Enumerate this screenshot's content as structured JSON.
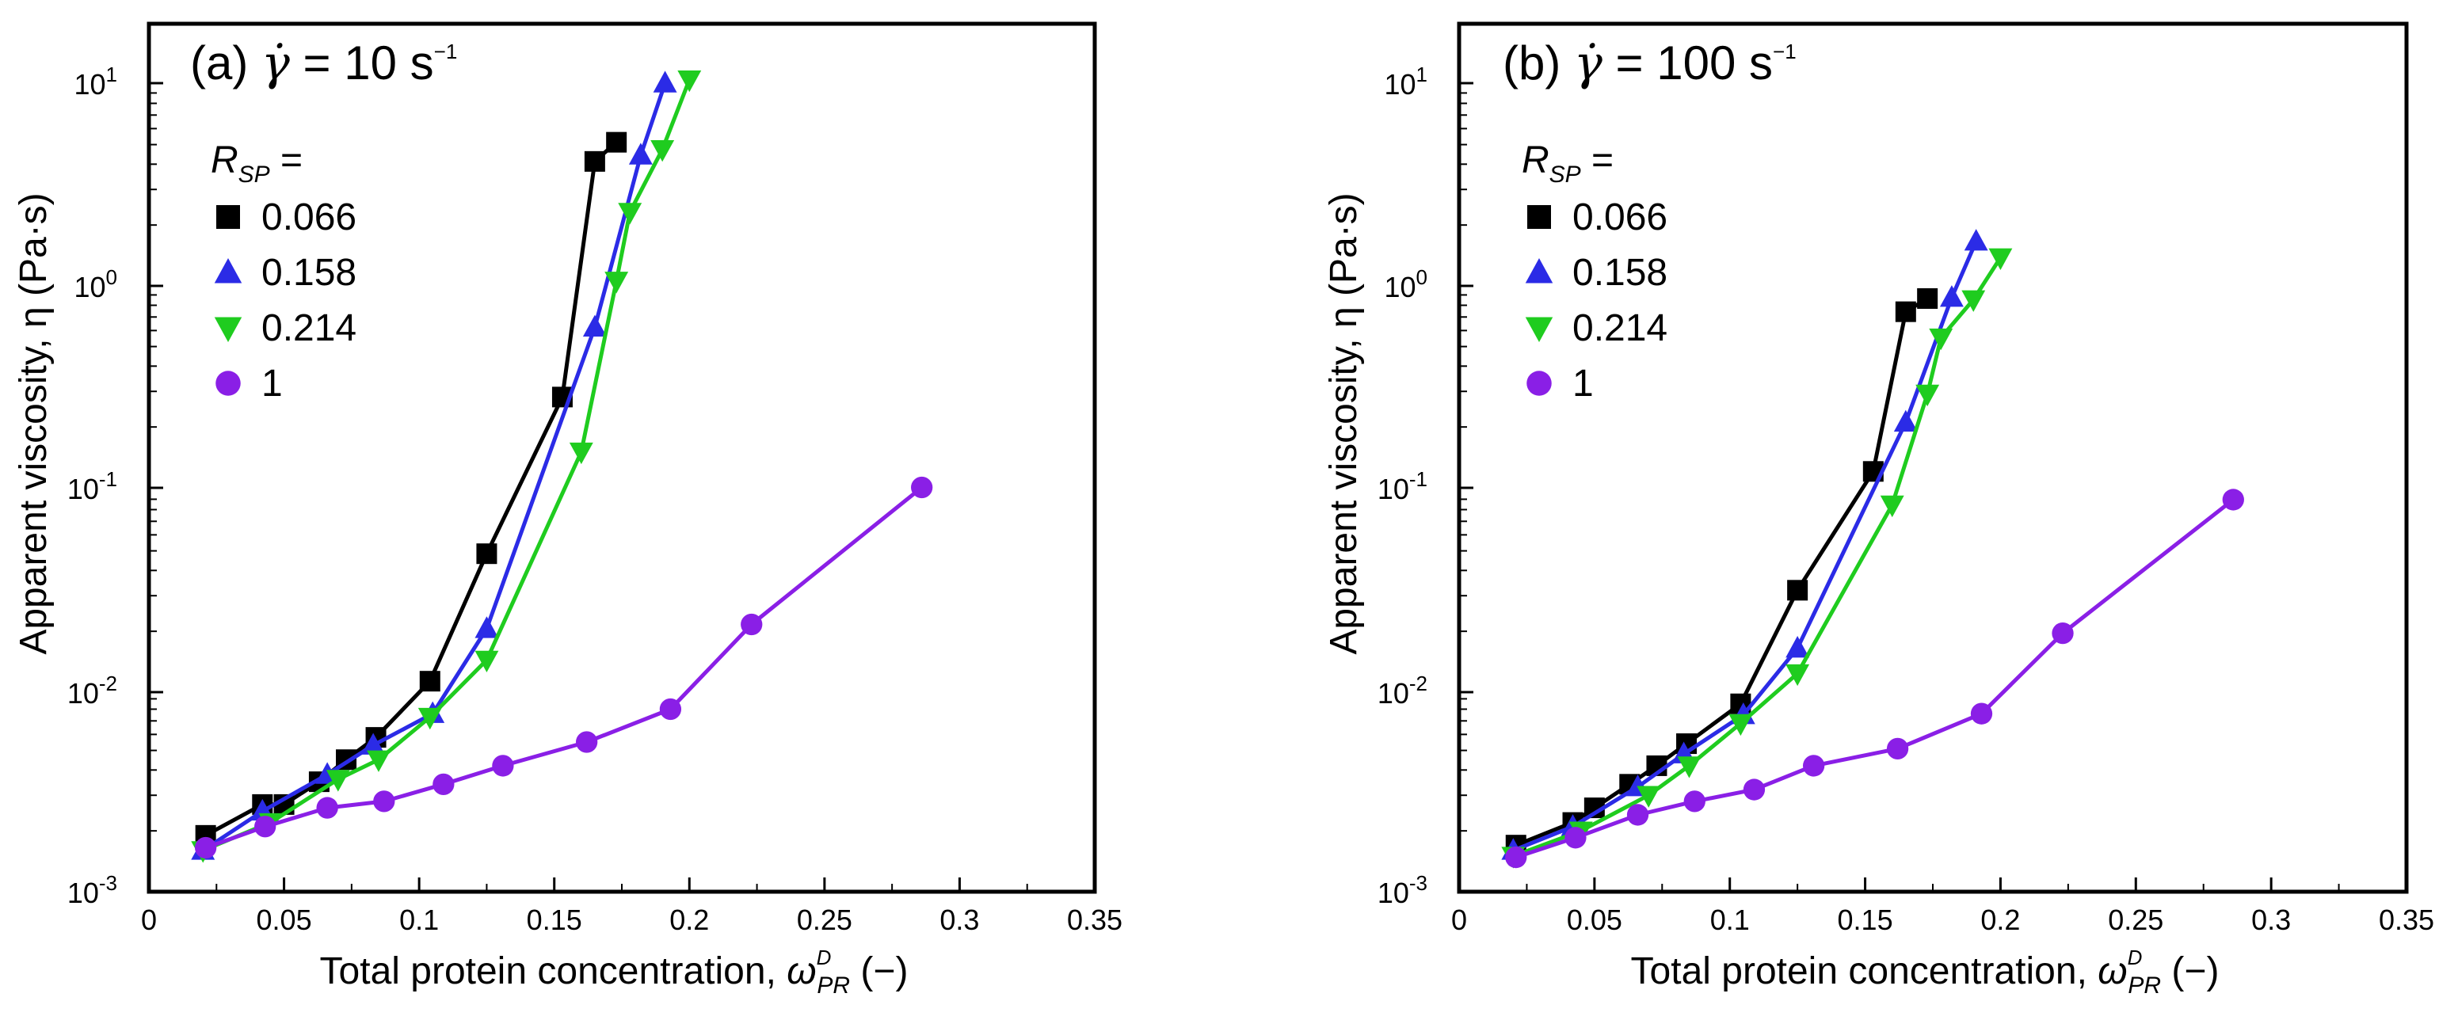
{
  "chart_data": [
    {
      "type": "line",
      "panel_label": "(a)",
      "gamma_symbol": "γ̇",
      "title_suffix": "= 10 s",
      "title_exp": "−1",
      "xlabel": "Total protein concentration,",
      "xlabel_symbol": "ω",
      "xlabel_sup": "D",
      "xlabel_sub": "PR",
      "xlabel_unit": "(−)",
      "ylabel": "Apparent viscosity, η (Pa·s)",
      "xlim": [
        0,
        0.35
      ],
      "ylim": [
        0.001,
        20
      ],
      "yscale": "log",
      "x_ticks": [
        "0",
        "0.05",
        "0.1",
        "0.15",
        "0.2",
        "0.25",
        "0.3",
        "0.35"
      ],
      "y_ticks": [
        "10",
        "10",
        "10",
        "10",
        "10"
      ],
      "y_tick_exps": [
        "-3",
        "-2",
        "-1",
        "0",
        "1"
      ],
      "legend_title": "R",
      "legend_title_sub": "SP",
      "legend_title_eq": "=",
      "series": [
        {
          "name": "0.066",
          "color": "#000000",
          "marker": "square",
          "x": [
            0.021,
            0.042,
            0.05,
            0.063,
            0.073,
            0.084,
            0.104,
            0.125,
            0.153,
            0.165,
            0.173
          ],
          "y": [
            0.0019,
            0.0027,
            0.0027,
            0.0035,
            0.0045,
            0.0058,
            0.011,
            0.047,
            0.28,
            4.1,
            5.1
          ]
        },
        {
          "name": "0.158",
          "color": "#2b2be6",
          "marker": "triangle-up",
          "x": [
            0.02,
            0.042,
            0.066,
            0.083,
            0.105,
            0.125,
            0.165,
            0.182,
            0.191
          ],
          "y": [
            0.0016,
            0.0025,
            0.0038,
            0.0053,
            0.0076,
            0.02,
            0.62,
            4.4,
            10.0
          ]
        },
        {
          "name": "0.214",
          "color": "#1fcc1f",
          "marker": "triangle-down",
          "x": [
            0.02,
            0.045,
            0.07,
            0.085,
            0.104,
            0.125,
            0.16,
            0.173,
            0.178,
            0.19,
            0.2
          ],
          "y": [
            0.0016,
            0.0022,
            0.0036,
            0.0045,
            0.0073,
            0.014,
            0.15,
            1.05,
            2.3,
            4.7,
            10.4
          ]
        },
        {
          "name": "1",
          "color": "#8a1fe6",
          "marker": "circle",
          "x": [
            0.021,
            0.043,
            0.066,
            0.087,
            0.109,
            0.131,
            0.162,
            0.193,
            0.223,
            0.286
          ],
          "y": [
            0.00165,
            0.0021,
            0.0026,
            0.0028,
            0.0034,
            0.0042,
            0.0055,
            0.008,
            0.021,
            0.1
          ]
        }
      ]
    },
    {
      "type": "line",
      "panel_label": "(b)",
      "gamma_symbol": "γ̇",
      "title_suffix": "= 100 s",
      "title_exp": "−1",
      "xlabel": "Total protein concentration,",
      "xlabel_symbol": "ω",
      "xlabel_sup": "D",
      "xlabel_sub": "PR",
      "xlabel_unit": "(−)",
      "ylabel": "Apparent viscosity, η (Pa·s)",
      "xlim": [
        0,
        0.35
      ],
      "ylim": [
        0.001,
        20
      ],
      "yscale": "log",
      "x_ticks": [
        "0",
        "0.05",
        "0.1",
        "0.15",
        "0.2",
        "0.25",
        "0.3",
        "0.35"
      ],
      "y_ticks": [
        "10",
        "10",
        "10",
        "10",
        "10"
      ],
      "y_tick_exps": [
        "-3",
        "-2",
        "-1",
        "0",
        "1"
      ],
      "legend_title": "R",
      "legend_title_sub": "SP",
      "legend_title_eq": "=",
      "series": [
        {
          "name": "0.066",
          "color": "#000000",
          "marker": "square",
          "x": [
            0.021,
            0.042,
            0.05,
            0.063,
            0.073,
            0.084,
            0.104,
            0.125,
            0.153,
            0.165,
            0.173
          ],
          "y": [
            0.0017,
            0.0022,
            0.0026,
            0.0034,
            0.0042,
            0.0054,
            0.0085,
            0.031,
            0.12,
            0.74,
            0.86
          ]
        },
        {
          "name": "0.158",
          "color": "#2b2be6",
          "marker": "triangle-up",
          "x": [
            0.02,
            0.042,
            0.066,
            0.083,
            0.105,
            0.125,
            0.165,
            0.182,
            0.191
          ],
          "y": [
            0.0016,
            0.0021,
            0.0033,
            0.0048,
            0.0075,
            0.016,
            0.21,
            0.87,
            1.65
          ]
        },
        {
          "name": "0.214",
          "color": "#1fcc1f",
          "marker": "triangle-down",
          "x": [
            0.02,
            0.045,
            0.07,
            0.085,
            0.104,
            0.125,
            0.16,
            0.173,
            0.178,
            0.19,
            0.2
          ],
          "y": [
            0.0015,
            0.002,
            0.003,
            0.0042,
            0.0068,
            0.012,
            0.082,
            0.29,
            0.55,
            0.85,
            1.37
          ]
        },
        {
          "name": "1",
          "color": "#8a1fe6",
          "marker": "circle",
          "x": [
            0.021,
            0.043,
            0.066,
            0.087,
            0.109,
            0.131,
            0.162,
            0.193,
            0.223,
            0.286
          ],
          "y": [
            0.00148,
            0.00185,
            0.0024,
            0.0028,
            0.0032,
            0.0042,
            0.0051,
            0.0076,
            0.019,
            0.087
          ]
        }
      ]
    }
  ]
}
